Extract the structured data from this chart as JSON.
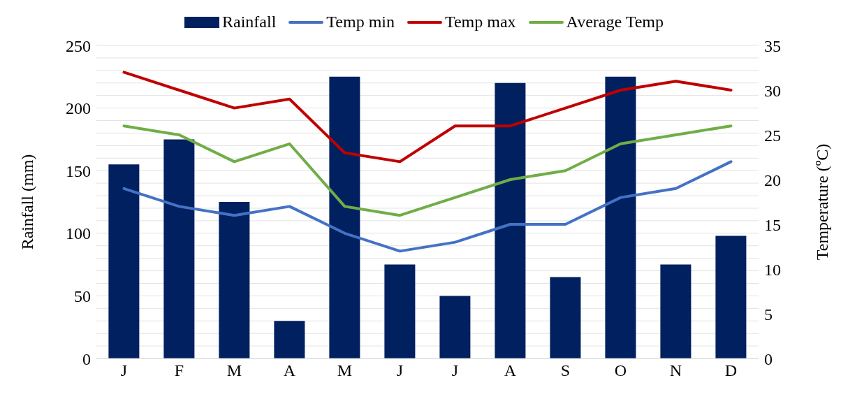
{
  "chart_data": {
    "type": "bar",
    "categories": [
      "J",
      "F",
      "M",
      "A",
      "M",
      "J",
      "J",
      "A",
      "S",
      "O",
      "N",
      "D"
    ],
    "ylabel": "Rainfall (mm)",
    "y2label": "Temperature (ºC)",
    "series": [
      {
        "name": "Rainfall",
        "color": "#002060",
        "values": [
          155,
          175,
          125,
          30,
          225,
          75,
          50,
          220,
          65,
          225,
          75,
          98
        ]
      },
      {
        "name": "Temp min",
        "type": "line",
        "axis": "y2",
        "color": "#4472c4",
        "values": [
          19,
          17,
          16,
          17,
          14,
          12,
          13,
          15,
          15,
          18,
          19,
          22
        ]
      },
      {
        "name": "Temp max",
        "type": "line",
        "axis": "y2",
        "color": "#c00000",
        "values": [
          32,
          30,
          28,
          29,
          23,
          22,
          26,
          26,
          28,
          30,
          31,
          30
        ]
      },
      {
        "name": "Average Temp",
        "type": "line",
        "axis": "y2",
        "color": "#70ad47",
        "values": [
          26,
          25,
          22,
          24,
          17,
          16,
          18,
          20,
          21,
          24,
          25,
          26
        ]
      }
    ],
    "ylim": [
      0,
      250
    ],
    "yticks": [
      0,
      {
        "value": 10,
        "label": null
      },
      {
        "value": 20,
        "label": null
      },
      {
        "value": 30,
        "label": null
      },
      {
        "value": 40,
        "label": null
      },
      50,
      {
        "value": 60,
        "label": null
      },
      {
        "value": 70,
        "label": null
      },
      {
        "value": 80,
        "label": null
      },
      {
        "value": 90,
        "label": null
      },
      100,
      {
        "value": 110,
        "label": null
      },
      {
        "value": 120,
        "label": null
      },
      {
        "value": 130,
        "label": null
      },
      {
        "value": 140,
        "label": null
      },
      150,
      {
        "value": 160,
        "label": null
      },
      {
        "value": 170,
        "label": null
      },
      {
        "value": 180,
        "label": null
      },
      {
        "value": 190,
        "label": null
      },
      200,
      {
        "value": 210,
        "label": null
      },
      {
        "value": 220,
        "label": null
      },
      {
        "value": 230,
        "label": null
      },
      {
        "value": 240,
        "label": null
      },
      250
    ],
    "y2lim": [
      0,
      35
    ],
    "y2ticks": [
      0,
      5,
      10,
      15,
      20,
      25,
      30,
      35
    ],
    "grid": "y",
    "legend": "top",
    "marker": "none",
    "line_style": "solid"
  }
}
